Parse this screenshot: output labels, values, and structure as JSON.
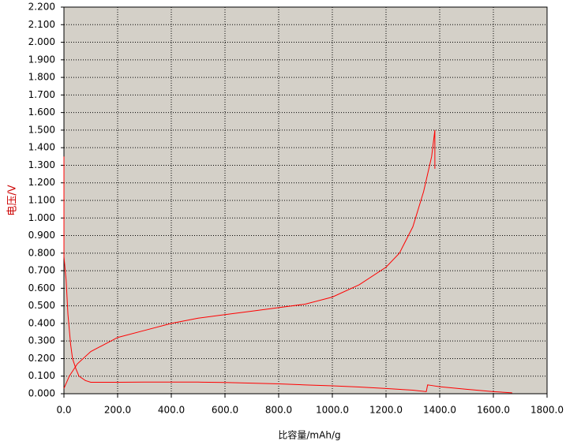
{
  "chart_data": {
    "type": "line",
    "x_label": "比容量/mAh/g",
    "y_label": "电压/V",
    "xlim": [
      0,
      1800
    ],
    "ylim": [
      0,
      2.2
    ],
    "xticks": [
      {
        "value": 0,
        "label": "0.0"
      },
      {
        "value": 200,
        "label": "200.0"
      },
      {
        "value": 400,
        "label": "400.0"
      },
      {
        "value": 600,
        "label": "600.0"
      },
      {
        "value": 800,
        "label": "800.0"
      },
      {
        "value": 1000,
        "label": "1000.0"
      },
      {
        "value": 1200,
        "label": "1200.0"
      },
      {
        "value": 1400,
        "label": "1400.0"
      },
      {
        "value": 1600,
        "label": "1600.0"
      },
      {
        "value": 1800,
        "label": "1800.0"
      }
    ],
    "yticks": [
      {
        "value": 0,
        "label": "0.000"
      },
      {
        "value": 0.1,
        "label": "0.100"
      },
      {
        "value": 0.2,
        "label": "0.200"
      },
      {
        "value": 0.3,
        "label": "0.300"
      },
      {
        "value": 0.4,
        "label": "0.400"
      },
      {
        "value": 0.5,
        "label": "0.500"
      },
      {
        "value": 0.6,
        "label": "0.600"
      },
      {
        "value": 0.7,
        "label": "0.700"
      },
      {
        "value": 0.8,
        "label": "0.800"
      },
      {
        "value": 0.9,
        "label": "0.900"
      },
      {
        "value": 1,
        "label": "1.000"
      },
      {
        "value": 1.1,
        "label": "1.100"
      },
      {
        "value": 1.2,
        "label": "1.200"
      },
      {
        "value": 1.3,
        "label": "1.300"
      },
      {
        "value": 1.4,
        "label": "1.400"
      },
      {
        "value": 1.5,
        "label": "1.500"
      },
      {
        "value": 1.6,
        "label": "1.600"
      },
      {
        "value": 1.7,
        "label": "1.700"
      },
      {
        "value": 1.8,
        "label": "1.800"
      },
      {
        "value": 1.9,
        "label": "1.900"
      },
      {
        "value": 2,
        "label": "2.000"
      },
      {
        "value": 2.1,
        "label": "2.100"
      },
      {
        "value": 2.2,
        "label": "2.200"
      }
    ],
    "grid": true,
    "series": [
      {
        "color": "#ff0000",
        "x": [
          0,
          0,
          8,
          15,
          25,
          32,
          45,
          56,
          80,
          100,
          200,
          300,
          400,
          500,
          600,
          700,
          800,
          900,
          1000,
          1100,
          1200,
          1300,
          1350,
          1355,
          1365,
          1400,
          1500,
          1600,
          1670
        ],
        "values": [
          1.35,
          0.78,
          0.65,
          0.45,
          0.28,
          0.2,
          0.14,
          0.1,
          0.075,
          0.065,
          0.065,
          0.066,
          0.066,
          0.066,
          0.064,
          0.06,
          0.056,
          0.05,
          0.045,
          0.038,
          0.03,
          0.02,
          0.012,
          0.05,
          0.048,
          0.04,
          0.025,
          0.012,
          0.005
        ]
      },
      {
        "color": "#ff0000",
        "x": [
          0,
          20,
          50,
          100,
          200,
          300,
          400,
          500,
          600,
          700,
          800,
          900,
          1000,
          1100,
          1200,
          1250,
          1300,
          1340,
          1370,
          1382,
          1382
        ],
        "values": [
          0.03,
          0.1,
          0.17,
          0.24,
          0.32,
          0.36,
          0.4,
          0.43,
          0.45,
          0.47,
          0.49,
          0.51,
          0.55,
          0.62,
          0.72,
          0.8,
          0.95,
          1.15,
          1.35,
          1.5,
          1.28
        ]
      }
    ]
  }
}
